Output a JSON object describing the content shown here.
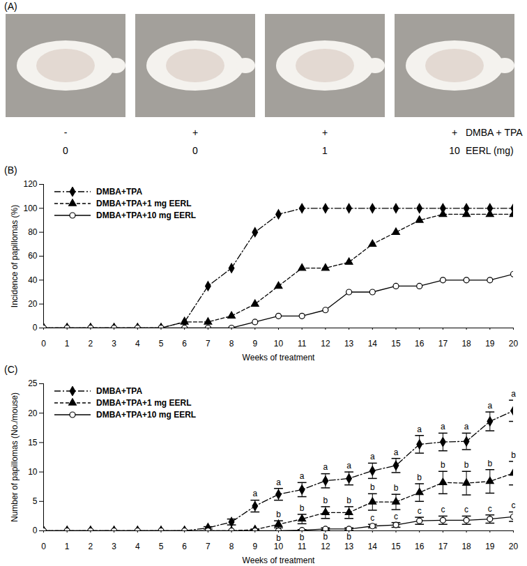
{
  "photo_panel": {
    "label": "(A)",
    "rows": [
      {
        "name": "DMBA + TPA",
        "values": [
          "-",
          "+",
          "+",
          "+"
        ]
      },
      {
        "name": "EERL (mg)",
        "values": [
          "0",
          "0",
          "1",
          "10"
        ]
      }
    ]
  },
  "chart_data": [
    {
      "type": "line",
      "title": "(B)",
      "x_label": "Weeks of treatment",
      "y_label": "Incidence of papillomas (%)",
      "x": [
        0,
        1,
        2,
        3,
        4,
        5,
        6,
        7,
        8,
        9,
        10,
        11,
        12,
        13,
        14,
        15,
        16,
        17,
        18,
        19,
        20
      ],
      "xlim": [
        0,
        20
      ],
      "xticks": [
        0,
        1,
        2,
        3,
        4,
        5,
        6,
        7,
        8,
        9,
        10,
        11,
        12,
        13,
        14,
        15,
        16,
        17,
        18,
        19,
        20
      ],
      "ylim": [
        0,
        120
      ],
      "yticks": [
        0,
        20,
        40,
        60,
        80,
        100,
        120
      ],
      "legend": "top-left",
      "series": [
        {
          "name": "DMBA+TPA",
          "color": "#000000",
          "marker": "diamond",
          "line_style": "dashdot",
          "values": [
            0,
            0,
            0,
            0,
            0,
            0,
            5,
            35,
            50,
            80,
            95,
            100,
            100,
            100,
            100,
            100,
            100,
            100,
            100,
            100,
            100
          ]
        },
        {
          "name": "DMBA+TPA+1 mg EERL",
          "color": "#000000",
          "marker": "triangle",
          "line_style": "dashed",
          "values": [
            0,
            0,
            0,
            0,
            0,
            0,
            5,
            5,
            10,
            20,
            35,
            50,
            50,
            55,
            70,
            80,
            90,
            95,
            95,
            95,
            95
          ]
        },
        {
          "name": "DMBA+TPA+10 mg EERL",
          "color": "#000000",
          "marker": "open_circle",
          "line_style": "solid",
          "values": [
            0,
            0,
            0,
            0,
            0,
            0,
            0,
            0,
            0,
            5,
            10,
            10,
            15,
            30,
            30,
            35,
            35,
            40,
            40,
            40,
            45
          ]
        }
      ]
    },
    {
      "type": "line",
      "title": "(C)",
      "x_label": "Weeks of treatment",
      "y_label": "Number of papillomas (No./mouse)",
      "x": [
        0,
        1,
        2,
        3,
        4,
        5,
        6,
        7,
        8,
        9,
        10,
        11,
        12,
        13,
        14,
        15,
        16,
        17,
        18,
        19,
        20
      ],
      "xlim": [
        0,
        20
      ],
      "xticks": [
        0,
        1,
        2,
        3,
        4,
        5,
        6,
        7,
        8,
        9,
        10,
        11,
        12,
        13,
        14,
        15,
        16,
        17,
        18,
        19,
        20
      ],
      "ylim": [
        0,
        25
      ],
      "yticks": [
        0,
        5,
        10,
        15,
        20,
        25
      ],
      "legend": "top-left",
      "series": [
        {
          "name": "DMBA+TPA",
          "color": "#000000",
          "marker": "diamond",
          "line_style": "dashdot",
          "values": [
            0,
            0,
            0,
            0,
            0,
            0,
            0,
            0.5,
            1.5,
            4.2,
            6.2,
            7.0,
            8.5,
            8.9,
            10.2,
            11.1,
            14.7,
            15.1,
            15.2,
            18.6,
            20.4
          ],
          "errors": [
            0,
            0,
            0,
            0,
            0,
            0,
            0,
            0.2,
            0.5,
            1.0,
            1.0,
            1.2,
            1.2,
            1.1,
            1.3,
            1.2,
            1.5,
            1.5,
            1.4,
            1.6,
            1.8
          ],
          "letters": [
            null,
            null,
            null,
            null,
            null,
            null,
            null,
            null,
            null,
            "a",
            "a",
            "a",
            "a",
            "a",
            "a",
            "a",
            "a",
            "a",
            "a",
            "a",
            "a"
          ]
        },
        {
          "name": "DMBA+TPA+1 mg EERL",
          "color": "#000000",
          "marker": "triangle",
          "line_style": "dashed",
          "values": [
            0,
            0,
            0,
            0,
            0,
            0,
            0,
            0,
            0,
            0.2,
            1.1,
            2.0,
            3.1,
            3.1,
            4.9,
            4.9,
            6.5,
            8.2,
            8.1,
            8.4,
            9.8
          ],
          "errors": [
            0,
            0,
            0,
            0,
            0,
            0,
            0,
            0,
            0,
            0.1,
            0.6,
            0.8,
            1.0,
            1.0,
            1.4,
            1.3,
            1.5,
            1.9,
            2.0,
            2.0,
            2.0
          ],
          "letters": [
            null,
            null,
            null,
            null,
            null,
            null,
            null,
            null,
            null,
            null,
            "b",
            "b",
            "b",
            "b",
            "b",
            "b",
            "b",
            "b",
            "b",
            "b",
            "b"
          ]
        },
        {
          "name": "DMBA+TPA+10 mg EERL",
          "color": "#000000",
          "marker": "open_circle",
          "line_style": "solid",
          "values": [
            0,
            0,
            0,
            0,
            0,
            0,
            0,
            0,
            0,
            0,
            0,
            0.1,
            0.3,
            0.3,
            0.8,
            1.0,
            1.7,
            1.8,
            1.8,
            2.0,
            2.4
          ],
          "errors": [
            0,
            0,
            0,
            0,
            0,
            0,
            0,
            0,
            0,
            0,
            0,
            0.1,
            0.2,
            0.2,
            0.3,
            0.4,
            0.6,
            0.7,
            0.7,
            0.7,
            0.8
          ],
          "letters": [
            null,
            null,
            null,
            null,
            null,
            null,
            null,
            null,
            null,
            null,
            "b",
            "b",
            "b",
            "b",
            "c",
            "c",
            "c",
            "c",
            "c",
            "c",
            "c"
          ]
        }
      ]
    }
  ]
}
